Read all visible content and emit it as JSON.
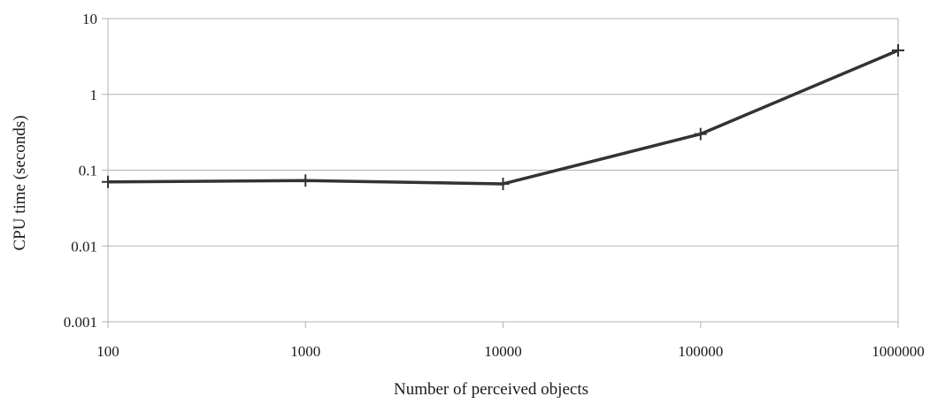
{
  "chart_data": {
    "type": "line",
    "title": "",
    "xlabel": "Number of perceived objects",
    "ylabel": "CPU time (seconds)",
    "x_scale": "log",
    "y_scale": "log",
    "xlim": [
      100,
      1000000
    ],
    "ylim": [
      0.001,
      10
    ],
    "x_ticks": [
      "100",
      "1000",
      "10000",
      "100000",
      "1000000"
    ],
    "y_ticks": [
      "0.001",
      "0.01",
      "0.1",
      "1",
      "10"
    ],
    "grid": "horizontal",
    "legend": "none",
    "line_color": "#333333",
    "series": [
      {
        "x": [
          100,
          1000,
          10000,
          100000,
          1000000
        ],
        "values": [
          0.07,
          0.073,
          0.066,
          0.3,
          3.8
        ]
      }
    ]
  }
}
